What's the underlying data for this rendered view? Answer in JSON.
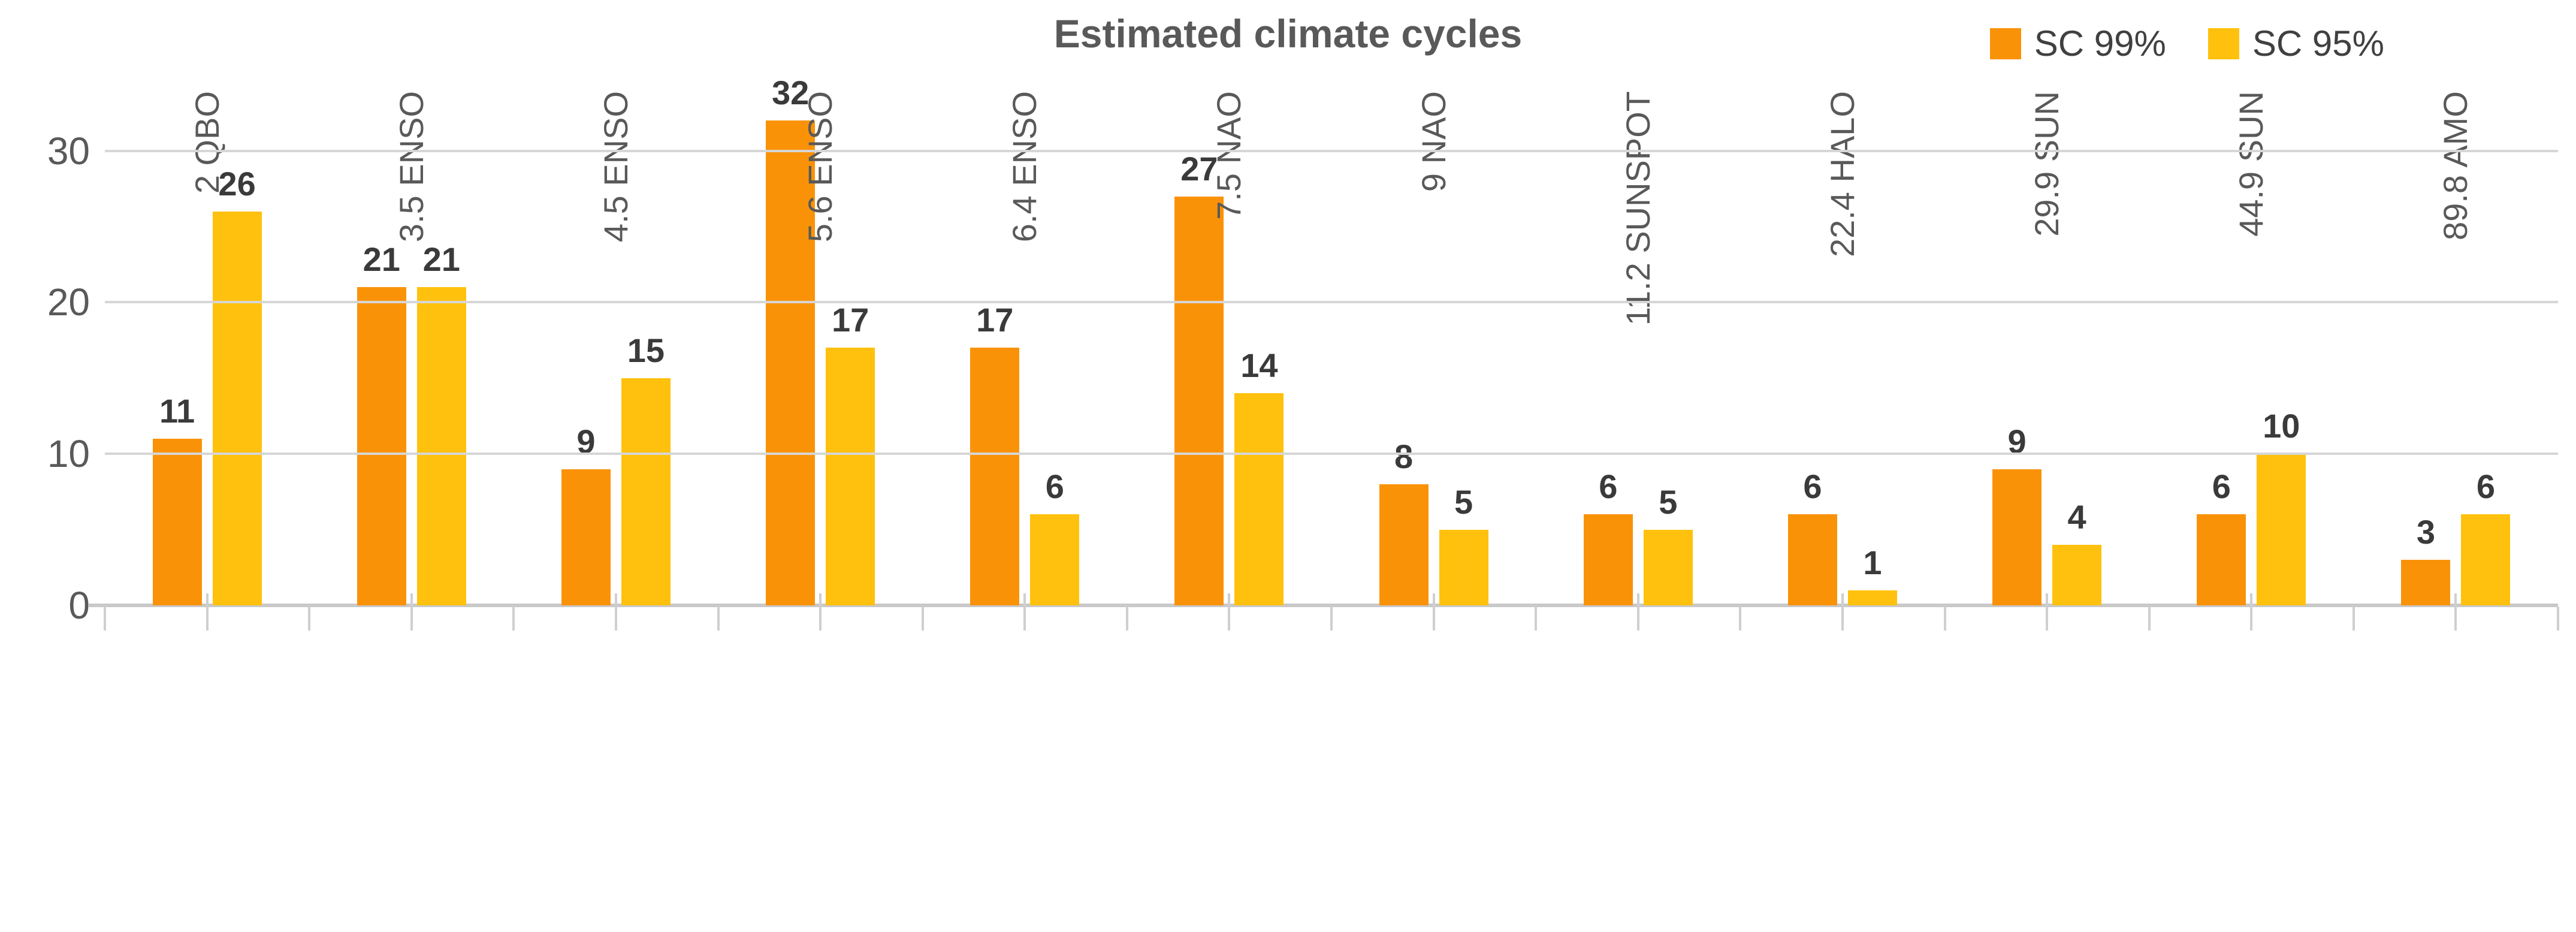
{
  "chart_data": {
    "type": "bar",
    "title": "Estimated climate cycles",
    "categories": [
      "2 QBO",
      "3.5 ENSO",
      "4.5 ENSO",
      "5.6 ENSO",
      "6.4 ENSO",
      "7.5 NAO",
      "9 NAO",
      "11.2 SUNSPOT",
      "22.4 HALO",
      "29.9 SUN",
      "44.9 SUN",
      "89.8 AMO"
    ],
    "series": [
      {
        "name": "SC 99%",
        "color": "#FA9208",
        "values": [
          11,
          21,
          9,
          32,
          17,
          27,
          8,
          6,
          6,
          9,
          6,
          3
        ]
      },
      {
        "name": "SC 95%",
        "color": "#FFC10D",
        "values": [
          26,
          21,
          15,
          17,
          6,
          14,
          5,
          5,
          1,
          4,
          10,
          6
        ]
      }
    ],
    "xlabel": "",
    "ylabel": "",
    "y_ticks": [
      0,
      10,
      20,
      30
    ],
    "ylim": [
      0,
      36
    ],
    "grid": true,
    "legend_position": "top-right",
    "bar_labels_shown": true,
    "category_label_rotation_deg": 90
  },
  "colors": {
    "title_text": "#595959",
    "axis_text": "#595959",
    "data_label_text": "#3A3A3A",
    "gridline": "#D6D6D6",
    "axis_line": "#C9C9C9"
  }
}
